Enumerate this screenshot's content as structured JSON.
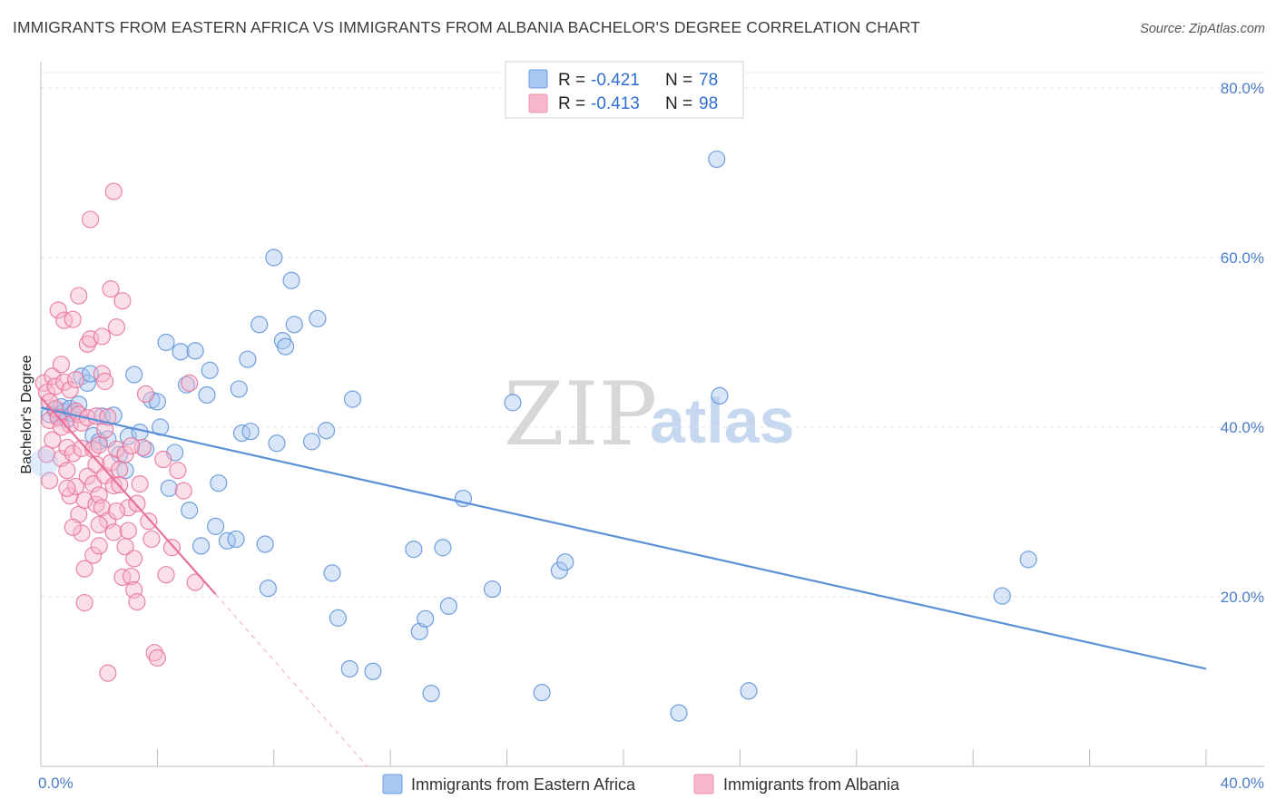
{
  "header": {
    "title": "IMMIGRANTS FROM EASTERN AFRICA VS IMMIGRANTS FROM ALBANIA BACHELOR'S DEGREE CORRELATION CHART",
    "source": "Source: ZipAtlas.com"
  },
  "watermark": {
    "zip": "ZIP",
    "atlas": "atlas"
  },
  "stats_legend": [
    {
      "r_label": "R =",
      "r_value": "-0.421",
      "n_label": "N =",
      "n_value": "78",
      "color": "#a9c8f0"
    },
    {
      "r_label": "R =",
      "r_value": "-0.413",
      "n_label": "N =",
      "n_value": "98",
      "color": "#f7b8cb"
    }
  ],
  "chart_data": {
    "type": "scatter",
    "title": "IMMIGRANTS FROM EASTERN AFRICA VS IMMIGRANTS FROM ALBANIA BACHELOR'S DEGREE CORRELATION CHART",
    "xlabel": "",
    "ylabel": "Bachelor's Degree",
    "xlim": [
      0,
      40
    ],
    "ylim": [
      0,
      80
    ],
    "x_tick_labels": [
      "0.0%",
      "40.0%"
    ],
    "y_tick_labels": [
      {
        "value": 20,
        "label": "20.0%"
      },
      {
        "value": 40,
        "label": "40.0%"
      },
      {
        "value": 60,
        "label": "60.0%"
      },
      {
        "value": 80,
        "label": "80.0%"
      }
    ],
    "grid": true,
    "series": [
      {
        "name": "Immigrants from Eastern Africa",
        "color": "#5b8fd8",
        "fill": "#a9c8f0",
        "r": -0.421,
        "n": 78,
        "trend": {
          "x0": 0.0,
          "y0": 42.3,
          "x1": 40.0,
          "y1": 11.5
        },
        "points": [
          [
            0.3,
            41.5
          ],
          [
            0.5,
            42.0
          ],
          [
            0.6,
            41.3
          ],
          [
            0.7,
            42.4
          ],
          [
            0.8,
            41.8
          ],
          [
            0.9,
            40.9
          ],
          [
            1.0,
            42.2
          ],
          [
            1.1,
            41.6
          ],
          [
            1.3,
            42.7
          ],
          [
            1.4,
            46.0
          ],
          [
            1.6,
            45.2
          ],
          [
            1.7,
            46.3
          ],
          [
            1.8,
            39.0
          ],
          [
            2.0,
            38.3
          ],
          [
            2.1,
            41.3
          ],
          [
            2.3,
            38.6
          ],
          [
            2.5,
            41.4
          ],
          [
            2.7,
            36.8
          ],
          [
            2.9,
            34.9
          ],
          [
            3.0,
            38.9
          ],
          [
            3.2,
            46.2
          ],
          [
            3.4,
            39.4
          ],
          [
            3.6,
            37.4
          ],
          [
            3.8,
            43.2
          ],
          [
            4.0,
            43.0
          ],
          [
            4.1,
            40.0
          ],
          [
            4.3,
            50.0
          ],
          [
            4.4,
            32.8
          ],
          [
            4.6,
            37.0
          ],
          [
            4.8,
            48.9
          ],
          [
            5.0,
            45.0
          ],
          [
            5.1,
            30.2
          ],
          [
            5.3,
            49.0
          ],
          [
            5.5,
            26.0
          ],
          [
            5.7,
            43.8
          ],
          [
            5.8,
            46.7
          ],
          [
            6.0,
            28.3
          ],
          [
            6.1,
            33.4
          ],
          [
            6.4,
            26.6
          ],
          [
            6.7,
            26.8
          ],
          [
            6.8,
            44.5
          ],
          [
            6.9,
            39.3
          ],
          [
            7.1,
            48.0
          ],
          [
            7.2,
            39.5
          ],
          [
            7.5,
            52.1
          ],
          [
            7.7,
            26.2
          ],
          [
            7.8,
            21.0
          ],
          [
            8.0,
            60.0
          ],
          [
            8.1,
            38.1
          ],
          [
            8.3,
            50.2
          ],
          [
            8.4,
            49.5
          ],
          [
            8.6,
            57.3
          ],
          [
            8.7,
            52.1
          ],
          [
            9.3,
            38.3
          ],
          [
            9.5,
            52.8
          ],
          [
            9.8,
            39.6
          ],
          [
            10.0,
            22.8
          ],
          [
            10.2,
            17.5
          ],
          [
            10.6,
            11.5
          ],
          [
            10.7,
            43.3
          ],
          [
            11.4,
            11.2
          ],
          [
            12.8,
            25.6
          ],
          [
            13.0,
            15.9
          ],
          [
            13.2,
            17.4
          ],
          [
            13.4,
            8.6
          ],
          [
            13.8,
            25.8
          ],
          [
            14.0,
            18.9
          ],
          [
            14.5,
            31.6
          ],
          [
            15.5,
            20.9
          ],
          [
            16.2,
            42.9
          ],
          [
            17.2,
            8.7
          ],
          [
            17.8,
            23.1
          ],
          [
            18.0,
            24.1
          ],
          [
            21.9,
            6.3
          ],
          [
            23.2,
            71.6
          ],
          [
            23.3,
            43.7
          ],
          [
            24.3,
            8.9
          ],
          [
            33.0,
            20.1
          ],
          [
            33.9,
            24.4
          ]
        ]
      },
      {
        "name": "Immigrants from Albania",
        "color": "#e8709a",
        "fill": "#f7b8cb",
        "r": -0.413,
        "n": 98,
        "trend": {
          "x0": 0.0,
          "y0": 43.5,
          "x1": 6.0,
          "y1": 20.3
        },
        "trend_dashed": {
          "x0": 6.0,
          "y0": 20.3,
          "x1": 11.2,
          "y1": 0.0
        },
        "points": [
          [
            0.1,
            45.2
          ],
          [
            0.2,
            44.1
          ],
          [
            0.3,
            43.0
          ],
          [
            0.3,
            40.8
          ],
          [
            0.4,
            38.5
          ],
          [
            0.4,
            46.0
          ],
          [
            0.5,
            44.8
          ],
          [
            0.5,
            42.2
          ],
          [
            0.6,
            53.8
          ],
          [
            0.6,
            41.1
          ],
          [
            0.7,
            47.4
          ],
          [
            0.7,
            36.3
          ],
          [
            0.8,
            52.6
          ],
          [
            0.8,
            45.3
          ],
          [
            0.9,
            37.6
          ],
          [
            0.9,
            34.9
          ],
          [
            1.0,
            44.4
          ],
          [
            1.0,
            40.3
          ],
          [
            1.0,
            31.9
          ],
          [
            1.1,
            52.7
          ],
          [
            1.1,
            36.9
          ],
          [
            1.2,
            45.6
          ],
          [
            1.2,
            41.9
          ],
          [
            1.2,
            33.0
          ],
          [
            1.3,
            55.5
          ],
          [
            1.3,
            41.5
          ],
          [
            1.3,
            29.7
          ],
          [
            1.4,
            40.5
          ],
          [
            1.4,
            37.5
          ],
          [
            1.4,
            27.5
          ],
          [
            1.5,
            31.4
          ],
          [
            1.5,
            19.3
          ],
          [
            1.6,
            49.8
          ],
          [
            1.6,
            41.1
          ],
          [
            1.6,
            34.2
          ],
          [
            1.7,
            50.4
          ],
          [
            1.7,
            64.5
          ],
          [
            1.8,
            37.4
          ],
          [
            1.8,
            33.3
          ],
          [
            1.8,
            24.9
          ],
          [
            1.9,
            41.3
          ],
          [
            1.9,
            35.6
          ],
          [
            1.9,
            30.9
          ],
          [
            2.0,
            37.9
          ],
          [
            2.0,
            26.0
          ],
          [
            2.0,
            32.0
          ],
          [
            2.1,
            50.7
          ],
          [
            2.1,
            46.3
          ],
          [
            2.1,
            30.5
          ],
          [
            2.2,
            39.7
          ],
          [
            2.2,
            34.3
          ],
          [
            2.2,
            45.4
          ],
          [
            2.3,
            41.2
          ],
          [
            2.3,
            29.0
          ],
          [
            2.3,
            11.0
          ],
          [
            2.4,
            56.3
          ],
          [
            2.4,
            35.8
          ],
          [
            2.5,
            67.8
          ],
          [
            2.5,
            33.1
          ],
          [
            2.5,
            27.6
          ],
          [
            2.6,
            51.8
          ],
          [
            2.6,
            37.4
          ],
          [
            2.7,
            35.0
          ],
          [
            2.7,
            33.2
          ],
          [
            2.8,
            54.9
          ],
          [
            2.8,
            22.3
          ],
          [
            2.9,
            36.8
          ],
          [
            2.9,
            25.9
          ],
          [
            3.0,
            30.5
          ],
          [
            3.0,
            27.8
          ],
          [
            3.1,
            22.4
          ],
          [
            3.2,
            24.5
          ],
          [
            3.2,
            20.8
          ],
          [
            3.3,
            19.4
          ],
          [
            3.3,
            31.0
          ],
          [
            3.4,
            33.3
          ],
          [
            3.5,
            37.6
          ],
          [
            3.6,
            43.9
          ],
          [
            3.8,
            26.8
          ],
          [
            3.9,
            13.4
          ],
          [
            4.0,
            12.8
          ],
          [
            4.2,
            36.2
          ],
          [
            4.3,
            22.6
          ],
          [
            4.5,
            25.8
          ],
          [
            4.7,
            34.9
          ],
          [
            4.9,
            32.5
          ],
          [
            5.1,
            45.2
          ],
          [
            5.3,
            21.7
          ],
          [
            0.2,
            36.8
          ],
          [
            0.3,
            33.7
          ],
          [
            0.7,
            40.0
          ],
          [
            0.9,
            32.8
          ],
          [
            1.1,
            28.2
          ],
          [
            1.5,
            23.3
          ],
          [
            2.0,
            28.5
          ],
          [
            2.6,
            30.1
          ],
          [
            3.1,
            37.8
          ],
          [
            3.7,
            28.9
          ]
        ]
      }
    ]
  },
  "bottom_legend": [
    {
      "label": "Immigrants from Eastern Africa",
      "color": "#a9c8f0"
    },
    {
      "label": "Immigrants from Albania",
      "color": "#f7b8cb"
    }
  ]
}
